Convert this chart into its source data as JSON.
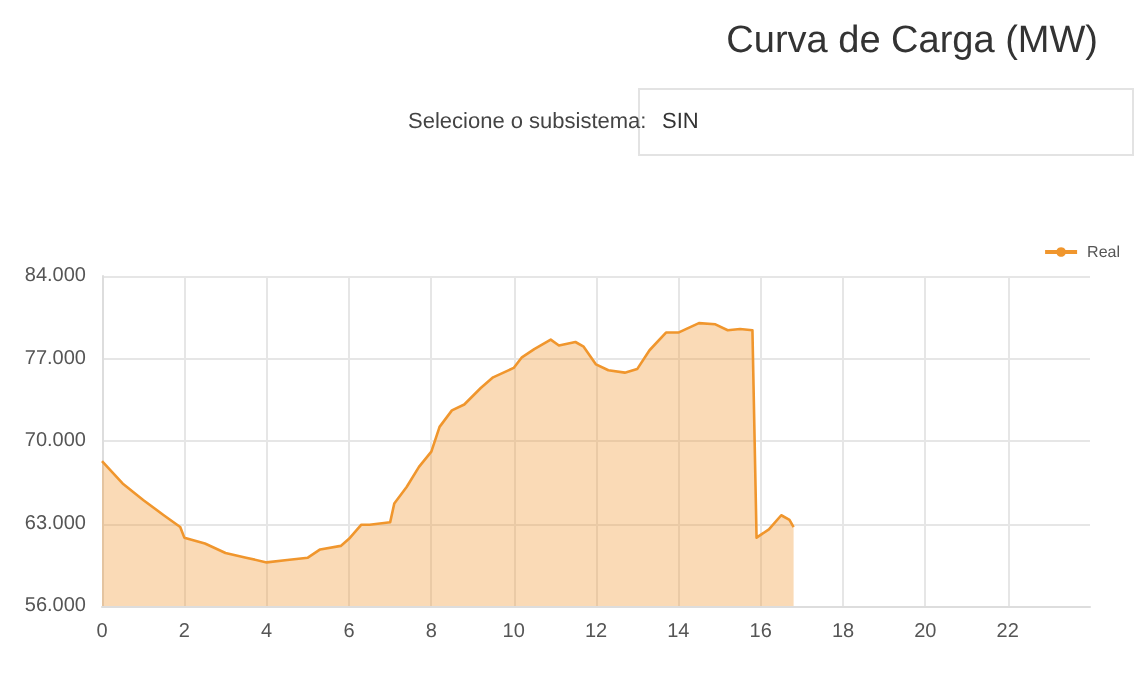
{
  "chart_data": {
    "type": "area",
    "title": "Curva de Carga (MW)",
    "annotations": [
      "Selecione o subsistema:",
      "SIN"
    ],
    "x": [
      0,
      0.5,
      1,
      1.5,
      1.9,
      2,
      2.5,
      3,
      3.5,
      4,
      4.5,
      5,
      5.3,
      5.8,
      6,
      6.3,
      6.5,
      7,
      7.1,
      7.4,
      7.7,
      8,
      8.2,
      8.5,
      8.8,
      9.2,
      9.5,
      10,
      10.2,
      10.5,
      10.9,
      11.1,
      11.5,
      11.7,
      12,
      12.3,
      12.7,
      13,
      13.3,
      13.7,
      14,
      14.5,
      14.9,
      15.2,
      15.5,
      15.8,
      15.9,
      16.2,
      16.5,
      16.7,
      16.8
    ],
    "series": [
      {
        "name": "Real",
        "color": "#f0962d",
        "values": [
          68300,
          66400,
          65000,
          63700,
          62700,
          61800,
          61300,
          60500,
          60100,
          59700,
          59900,
          60100,
          60800,
          61100,
          61700,
          62900,
          62900,
          63100,
          64700,
          66100,
          67800,
          69100,
          71200,
          72600,
          73100,
          74500,
          75400,
          76200,
          77100,
          77800,
          78600,
          78100,
          78400,
          78000,
          76500,
          76000,
          75800,
          76100,
          77700,
          79200,
          79200,
          80000,
          79900,
          79400,
          79500,
          79400,
          61800,
          62500,
          63700,
          63300,
          62700
        ]
      }
    ],
    "xlim": [
      0,
      24
    ],
    "xticks": [
      0,
      2,
      4,
      6,
      8,
      10,
      12,
      14,
      16,
      18,
      20,
      22
    ],
    "ylim": [
      56000,
      84000
    ],
    "yticks": [
      {
        "value": 56000,
        "label": "56.000"
      },
      {
        "value": 63000,
        "label": "63.000"
      },
      {
        "value": 70000,
        "label": "70.000"
      },
      {
        "value": 77000,
        "label": "77.000"
      },
      {
        "value": 84000,
        "label": "84.000"
      }
    ],
    "grid": true,
    "legend": "top right"
  }
}
